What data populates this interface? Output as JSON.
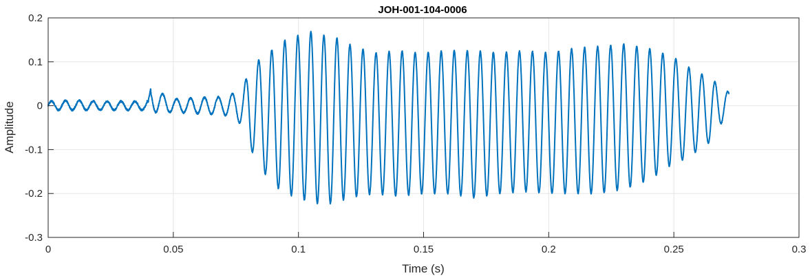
{
  "chart_data": {
    "type": "line",
    "title": "JOH-001-104-0006",
    "xlabel": "Time (s)",
    "ylabel": "Amplitude",
    "xlim": [
      0,
      0.3
    ],
    "ylim": [
      -0.3,
      0.2
    ],
    "xticks": [
      0,
      0.05,
      0.1,
      0.15,
      0.2,
      0.25,
      0.3
    ],
    "yticks": [
      -0.3,
      -0.2,
      -0.1,
      0,
      0.1,
      0.2
    ],
    "xtick_labels": [
      "0",
      "0.05",
      "0.1",
      "0.15",
      "0.2",
      "0.25",
      "0.3"
    ],
    "ytick_labels": [
      "-0.3",
      "-0.2",
      "-0.1",
      "0",
      "0.1",
      "0.2"
    ],
    "grid": true,
    "line_color": "#0072BD",
    "series": [
      {
        "x": [
          0,
          0.01,
          0.02,
          0.03,
          0.04,
          0.041,
          0.05,
          0.06,
          0.07,
          0.075,
          0.078,
          0.08,
          0.083,
          0.086,
          0.09,
          0.095,
          0.1,
          0.105,
          0.11,
          0.115,
          0.12,
          0.13,
          0.14,
          0.15,
          0.16,
          0.17,
          0.18,
          0.19,
          0.2,
          0.21,
          0.22,
          0.23,
          0.24,
          0.25,
          0.255,
          0.26,
          0.265,
          0.27,
          0.272
        ],
        "envelope_max": [
          0.01,
          0.012,
          0.01,
          0.01,
          0.01,
          0.04,
          0.015,
          0.018,
          0.02,
          0.03,
          0.04,
          0.08,
          0.1,
          0.11,
          0.13,
          0.15,
          0.16,
          0.168,
          0.16,
          0.155,
          0.14,
          0.12,
          0.125,
          0.12,
          0.125,
          0.125,
          0.12,
          0.125,
          0.12,
          0.13,
          0.135,
          0.14,
          0.13,
          0.11,
          0.09,
          0.075,
          0.06,
          0.04,
          0.03
        ],
        "envelope_min": [
          -0.01,
          -0.01,
          -0.01,
          -0.01,
          -0.01,
          -0.015,
          -0.015,
          -0.018,
          -0.02,
          -0.03,
          -0.05,
          -0.09,
          -0.12,
          -0.15,
          -0.18,
          -0.2,
          -0.21,
          -0.22,
          -0.225,
          -0.22,
          -0.21,
          -0.2,
          -0.205,
          -0.2,
          -0.2,
          -0.21,
          -0.2,
          -0.195,
          -0.2,
          -0.2,
          -0.2,
          -0.19,
          -0.17,
          -0.13,
          -0.12,
          -0.1,
          -0.08,
          -0.03,
          -0.02
        ]
      }
    ]
  }
}
